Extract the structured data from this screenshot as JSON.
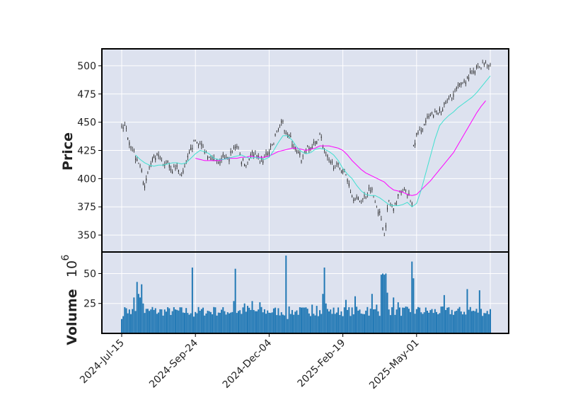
{
  "chart_data": {
    "type": "candlestick",
    "colors": {
      "panel_bg": "#dde2ef",
      "grid": "#ffffff",
      "candle": "#222222",
      "volume": "#1f77b4",
      "ma_short": "#40e0d0",
      "ma_long": "#ff00ff"
    },
    "grid": true,
    "price_panel": {
      "ylabel": "Price",
      "ylim": [
        335,
        515
      ],
      "yticks": [
        350,
        375,
        400,
        425,
        450,
        475,
        500
      ],
      "knots": [
        [
          0,
          448
        ],
        [
          3,
          443
        ],
        [
          6,
          430
        ],
        [
          9,
          420
        ],
        [
          12,
          412
        ],
        [
          15,
          393
        ],
        [
          18,
          410
        ],
        [
          21,
          416
        ],
        [
          24,
          420
        ],
        [
          27,
          411
        ],
        [
          30,
          415
        ],
        [
          33,
          408
        ],
        [
          36,
          410
        ],
        [
          39,
          402
        ],
        [
          42,
          412
        ],
        [
          45,
          427
        ],
        [
          48,
          434
        ],
        [
          51,
          430
        ],
        [
          54,
          425
        ],
        [
          57,
          420
        ],
        [
          60,
          417
        ],
        [
          63,
          413
        ],
        [
          66,
          418
        ],
        [
          69,
          416
        ],
        [
          72,
          425
        ],
        [
          75,
          430
        ],
        [
          78,
          416
        ],
        [
          81,
          412
        ],
        [
          84,
          422
        ],
        [
          87,
          420
        ],
        [
          90,
          415
        ],
        [
          93,
          418
        ],
        [
          96,
          424
        ],
        [
          99,
          432
        ],
        [
          102,
          446
        ],
        [
          105,
          448
        ],
        [
          108,
          440
        ],
        [
          111,
          432
        ],
        [
          114,
          424
        ],
        [
          117,
          416
        ],
        [
          120,
          426
        ],
        [
          123,
          428
        ],
        [
          126,
          430
        ],
        [
          129,
          440
        ],
        [
          132,
          425
        ],
        [
          135,
          414
        ],
        [
          138,
          412
        ],
        [
          141,
          410
        ],
        [
          144,
          408
        ],
        [
          147,
          400
        ],
        [
          150,
          385
        ],
        [
          153,
          382
        ],
        [
          156,
          380
        ],
        [
          159,
          385
        ],
        [
          162,
          392
        ],
        [
          165,
          382
        ],
        [
          168,
          368
        ],
        [
          171,
          352
        ],
        [
          174,
          380
        ],
        [
          177,
          372
        ],
        [
          180,
          385
        ],
        [
          183,
          390
        ],
        [
          186,
          386
        ],
        [
          189,
          378
        ],
        [
          190,
          428
        ],
        [
          192,
          438
        ],
        [
          195,
          443
        ],
        [
          198,
          450
        ],
        [
          201,
          455
        ],
        [
          204,
          457
        ],
        [
          207,
          460
        ],
        [
          210,
          465
        ],
        [
          213,
          470
        ],
        [
          216,
          475
        ],
        [
          219,
          480
        ],
        [
          222,
          485
        ],
        [
          225,
          489
        ],
        [
          228,
          492
        ],
        [
          231,
          497
        ],
        [
          234,
          500
        ],
        [
          237,
          503
        ],
        [
          239,
          501
        ]
      ],
      "ma_short_knots": [
        [
          9,
          421
        ],
        [
          12,
          417
        ],
        [
          15,
          414
        ],
        [
          18,
          412
        ],
        [
          21,
          411
        ],
        [
          24,
          412
        ],
        [
          27,
          412
        ],
        [
          30,
          413
        ],
        [
          33,
          414
        ],
        [
          36,
          414
        ],
        [
          39,
          413
        ],
        [
          42,
          414
        ],
        [
          45,
          418
        ],
        [
          48,
          422
        ],
        [
          51,
          425
        ],
        [
          54,
          424
        ],
        [
          57,
          422
        ],
        [
          60,
          418
        ],
        [
          63,
          417
        ],
        [
          66,
          417
        ],
        [
          69,
          418
        ],
        [
          72,
          419
        ],
        [
          75,
          420
        ],
        [
          78,
          421
        ],
        [
          81,
          419
        ],
        [
          84,
          418
        ],
        [
          87,
          419
        ],
        [
          90,
          418
        ],
        [
          93,
          417
        ],
        [
          96,
          419
        ],
        [
          99,
          425
        ],
        [
          102,
          432
        ],
        [
          105,
          438
        ],
        [
          108,
          438
        ],
        [
          111,
          434
        ],
        [
          114,
          428
        ],
        [
          117,
          424
        ],
        [
          120,
          422
        ],
        [
          123,
          423
        ],
        [
          126,
          426
        ],
        [
          129,
          427
        ],
        [
          132,
          426
        ],
        [
          135,
          424
        ],
        [
          138,
          421
        ],
        [
          141,
          416
        ],
        [
          144,
          409
        ],
        [
          147,
          404
        ],
        [
          150,
          400
        ],
        [
          153,
          394
        ],
        [
          156,
          389
        ],
        [
          159,
          386
        ],
        [
          162,
          385
        ],
        [
          165,
          385
        ],
        [
          168,
          383
        ],
        [
          171,
          380
        ],
        [
          174,
          377
        ],
        [
          177,
          376
        ],
        [
          180,
          376
        ],
        [
          183,
          377
        ],
        [
          186,
          379
        ],
        [
          189,
          375
        ],
        [
          192,
          378
        ],
        [
          195,
          390
        ],
        [
          198,
          405
        ],
        [
          201,
          420
        ],
        [
          204,
          435
        ],
        [
          207,
          447
        ],
        [
          210,
          452
        ],
        [
          213,
          456
        ],
        [
          216,
          459
        ],
        [
          219,
          463
        ],
        [
          222,
          466
        ],
        [
          225,
          469
        ],
        [
          228,
          472
        ],
        [
          231,
          476
        ],
        [
          234,
          481
        ],
        [
          237,
          486
        ],
        [
          240,
          491
        ]
      ],
      "ma_long_knots": [
        [
          48,
          418
        ],
        [
          51,
          417
        ],
        [
          54,
          416
        ],
        [
          57,
          416
        ],
        [
          60,
          416
        ],
        [
          63,
          416
        ],
        [
          66,
          417
        ],
        [
          69,
          418
        ],
        [
          72,
          418
        ],
        [
          75,
          418
        ],
        [
          78,
          419
        ],
        [
          81,
          419
        ],
        [
          84,
          420
        ],
        [
          87,
          419
        ],
        [
          90,
          419
        ],
        [
          93,
          419
        ],
        [
          96,
          420
        ],
        [
          99,
          422
        ],
        [
          102,
          424
        ],
        [
          105,
          425
        ],
        [
          108,
          426
        ],
        [
          111,
          427
        ],
        [
          114,
          427
        ],
        [
          117,
          426
        ],
        [
          120,
          425
        ],
        [
          123,
          426
        ],
        [
          126,
          427
        ],
        [
          129,
          429
        ],
        [
          132,
          429
        ],
        [
          135,
          429
        ],
        [
          138,
          428
        ],
        [
          141,
          427
        ],
        [
          144,
          425
        ],
        [
          147,
          421
        ],
        [
          150,
          416
        ],
        [
          153,
          412
        ],
        [
          156,
          408
        ],
        [
          159,
          405
        ],
        [
          162,
          403
        ],
        [
          165,
          401
        ],
        [
          168,
          399
        ],
        [
          171,
          397
        ],
        [
          174,
          393
        ],
        [
          177,
          390
        ],
        [
          180,
          389
        ],
        [
          183,
          388
        ],
        [
          186,
          386
        ],
        [
          189,
          385
        ],
        [
          192,
          386
        ],
        [
          195,
          390
        ],
        [
          198,
          394
        ],
        [
          201,
          398
        ],
        [
          204,
          403
        ],
        [
          207,
          408
        ],
        [
          210,
          413
        ],
        [
          213,
          418
        ],
        [
          216,
          423
        ],
        [
          219,
          430
        ],
        [
          222,
          437
        ],
        [
          225,
          444
        ],
        [
          228,
          451
        ],
        [
          231,
          458
        ],
        [
          234,
          464
        ],
        [
          237,
          469
        ]
      ]
    },
    "volume_panel": {
      "ylabel": "Volume",
      "scale_label": "10",
      "scale_exp": "6",
      "ylim": [
        0,
        68
      ],
      "yticks": [
        25,
        50
      ],
      "baseline_millions": 18,
      "spikes_millions": [
        [
          0,
          12
        ],
        [
          3,
          21
        ],
        [
          5,
          20
        ],
        [
          8,
          30
        ],
        [
          10,
          43
        ],
        [
          11,
          33
        ],
        [
          12,
          30
        ],
        [
          13,
          41
        ],
        [
          14,
          25
        ],
        [
          20,
          22
        ],
        [
          46,
          55
        ],
        [
          47,
          14
        ],
        [
          60,
          22
        ],
        [
          73,
          27
        ],
        [
          74,
          54
        ],
        [
          80,
          25
        ],
        [
          82,
          23
        ],
        [
          85,
          27
        ],
        [
          90,
          26
        ],
        [
          107,
          65
        ],
        [
          108,
          12
        ],
        [
          124,
          24
        ],
        [
          127,
          23
        ],
        [
          131,
          33
        ],
        [
          132,
          55
        ],
        [
          133,
          25
        ],
        [
          146,
          28
        ],
        [
          152,
          31
        ],
        [
          160,
          22
        ],
        [
          163,
          33
        ],
        [
          166,
          24
        ],
        [
          169,
          49
        ],
        [
          170,
          50
        ],
        [
          171,
          49
        ],
        [
          172,
          50
        ],
        [
          173,
          34
        ],
        [
          174,
          20
        ],
        [
          177,
          30
        ],
        [
          180,
          26
        ],
        [
          189,
          60
        ],
        [
          190,
          46
        ],
        [
          193,
          22
        ],
        [
          210,
          32
        ],
        [
          225,
          37
        ],
        [
          227,
          22
        ],
        [
          233,
          36
        ],
        [
          236,
          17
        ]
      ]
    },
    "x_axis": {
      "n_days": 241,
      "ticks": [
        {
          "index": 0,
          "label": "2024-Jul-15"
        },
        {
          "index": 48,
          "label": "2024-Sep-24"
        },
        {
          "index": 96,
          "label": "2024-Dec-04"
        },
        {
          "index": 144,
          "label": "2025-Feb-19"
        },
        {
          "index": 192,
          "label": "2025-May-01"
        }
      ]
    }
  }
}
